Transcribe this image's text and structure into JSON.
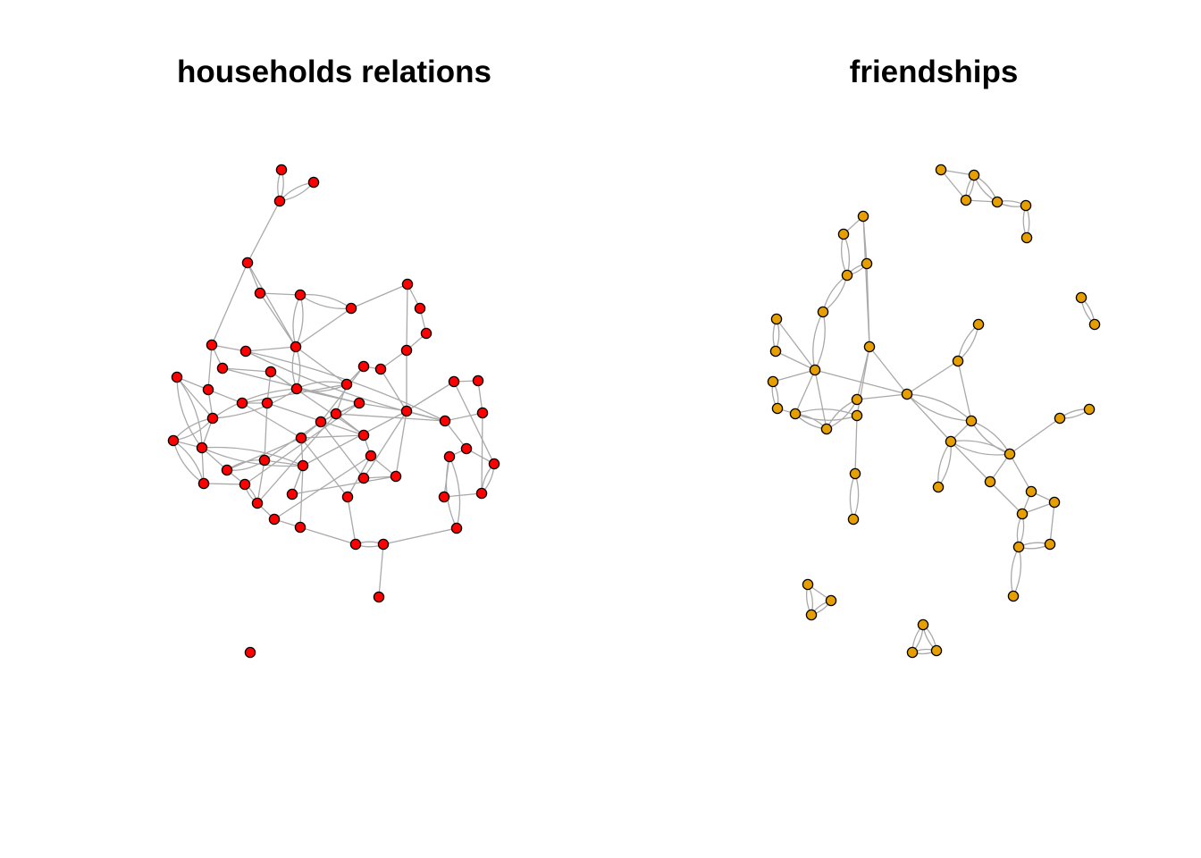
{
  "panels": [
    {
      "id": "households",
      "title": "households relations",
      "node_color": "#ff0000"
    },
    {
      "id": "friendships",
      "title": "friendships",
      "node_color": "#e69f00"
    }
  ],
  "colors": {
    "edge": "#a9a9a9",
    "node_border": "#000000",
    "background": "#ffffff"
  }
}
